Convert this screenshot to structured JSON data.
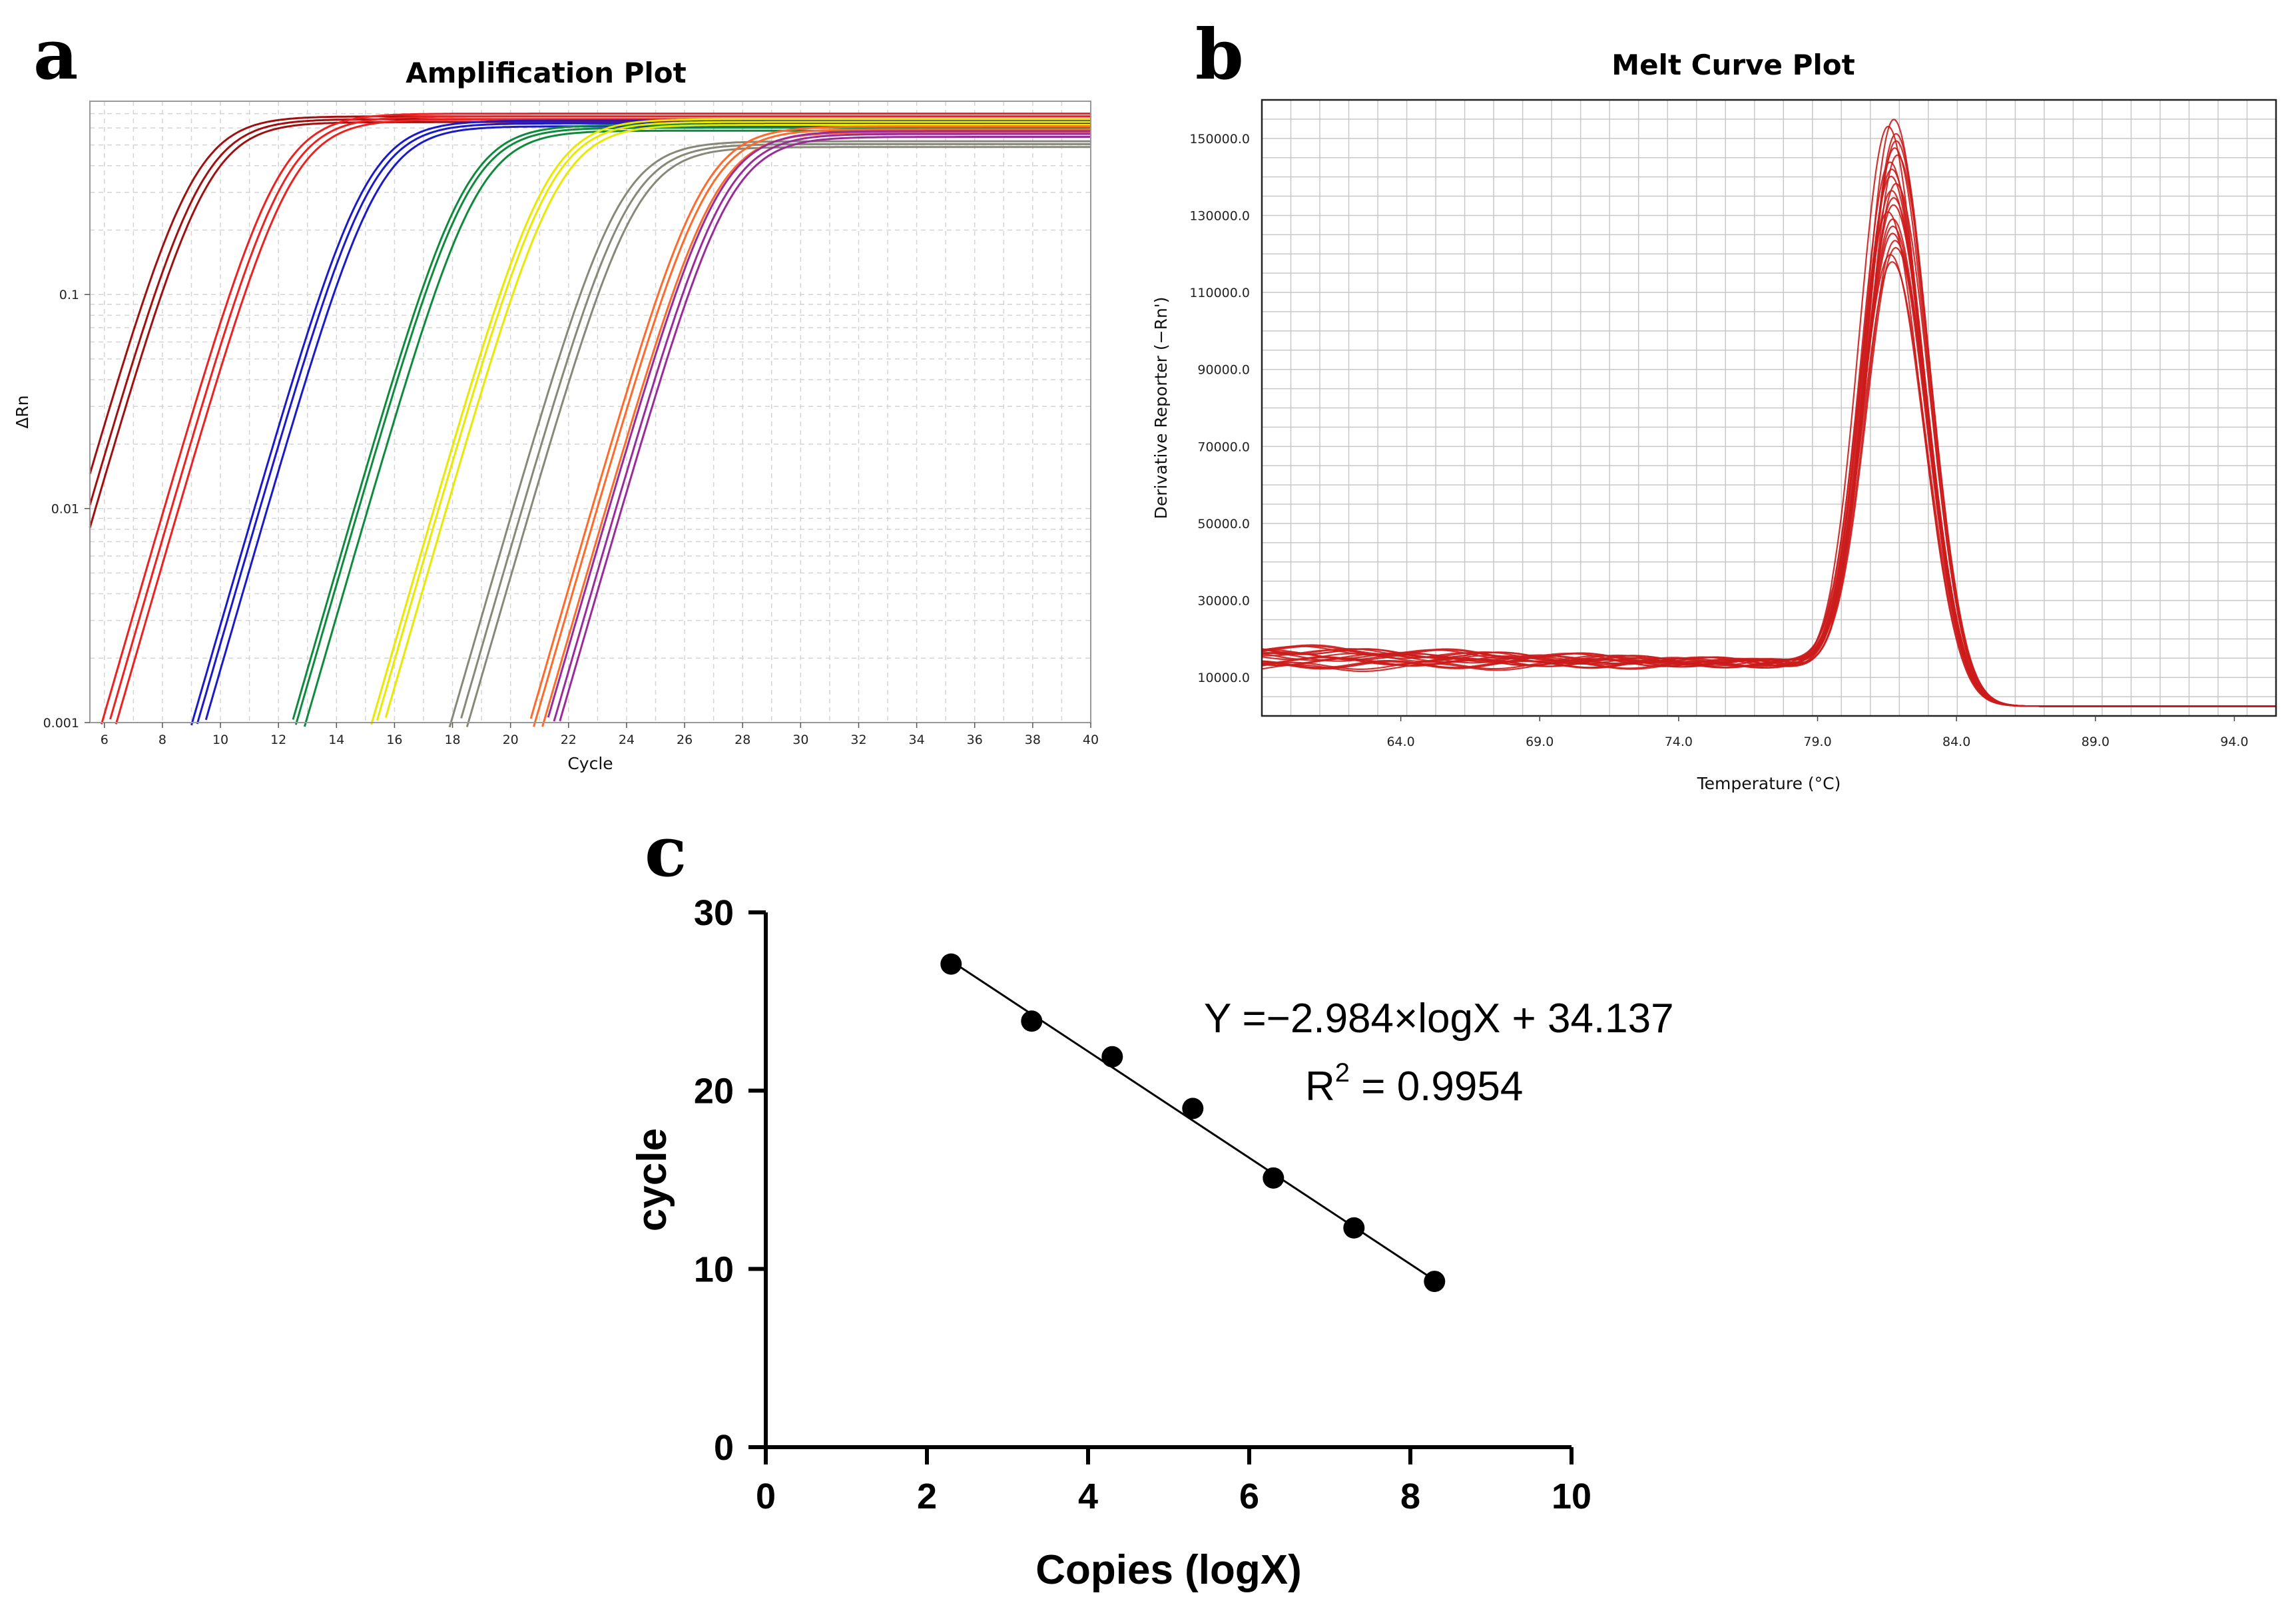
{
  "figure": {
    "panel_a_letter": "a",
    "panel_b_letter": "b",
    "panel_c_letter": "c"
  },
  "chart_data": [
    {
      "panel": "a",
      "type": "line",
      "title": "Amplification Plot",
      "xlabel": "Cycle",
      "ylabel": "ΔRn",
      "xlim": [
        5.5,
        40
      ],
      "ylim": [
        0.001,
        0.8
      ],
      "yscale": "log",
      "x_ticks": [
        "6",
        "8",
        "10",
        "12",
        "14",
        "16",
        "18",
        "20",
        "22",
        "24",
        "26",
        "28",
        "30",
        "32",
        "34",
        "36",
        "38",
        "40"
      ],
      "y_ticks": [
        "0.001",
        "0.01",
        "0.1"
      ],
      "grid": true,
      "series": [
        {
          "color": "#a01010",
          "ct": 9.3,
          "plateau": 0.68,
          "replicates": 3
        },
        {
          "color": "#ee2020",
          "ct": 12.2,
          "plateau": 0.7,
          "replicates": 3
        },
        {
          "color": "#1a1acc",
          "ct": 15.2,
          "plateau": 0.65,
          "replicates": 3
        },
        {
          "color": "#0d8a3c",
          "ct": 18.6,
          "plateau": 0.62,
          "replicates": 3
        },
        {
          "color": "#e8e800",
          "ct": 21.4,
          "plateau": 0.66,
          "replicates": 3
        },
        {
          "color": "#888878",
          "ct": 24.0,
          "plateau": 0.52,
          "replicates": 3
        },
        {
          "color": "#ff6a2a",
          "ct": 26.8,
          "plateau": 0.61,
          "replicates": 3
        },
        {
          "color": "#9a2b9a",
          "ct": 27.3,
          "plateau": 0.58,
          "replicates": 3
        }
      ]
    },
    {
      "panel": "b",
      "type": "line",
      "title": "Melt Curve Plot",
      "xlabel": "Temperature (°C)",
      "ylabel": "Derivative Reporter (−Rn')",
      "xlim": [
        59,
        95.5
      ],
      "ylim": [
        0,
        160000
      ],
      "x_ticks": [
        "64.0",
        "69.0",
        "74.0",
        "79.0",
        "84.0",
        "89.0",
        "94.0"
      ],
      "y_ticks": [
        "10000.0",
        "30000.0",
        "50000.0",
        "70000.0",
        "90000.0",
        "110000.0",
        "130000.0",
        "150000.0"
      ],
      "grid": true,
      "series_color": "#cc1c1c",
      "melt_peak_temperature": 81.7,
      "peak_height_range": [
        118000,
        155000
      ],
      "baseline_level": 15000,
      "curve_count": 21
    },
    {
      "panel": "c",
      "type": "scatter",
      "xlabel": "Copies (logX)",
      "ylabel": "cycle",
      "xlim": [
        0,
        10
      ],
      "ylim": [
        0,
        30
      ],
      "x_ticks": [
        "0",
        "2",
        "4",
        "6",
        "8",
        "10"
      ],
      "y_ticks": [
        "0",
        "10",
        "20",
        "30"
      ],
      "x": [
        2.3,
        3.3,
        4.3,
        5.3,
        6.3,
        7.3,
        8.3
      ],
      "y": [
        27.1,
        23.9,
        21.9,
        19.0,
        15.1,
        12.3,
        9.3
      ],
      "fit": {
        "slope": -2.984,
        "intercept": 34.137,
        "x_range": [
          2.3,
          8.3
        ]
      },
      "equation": "Y =−2.984×logX + 34.137",
      "r2_prefix": "R",
      "r2_sup": "2",
      "r2_value": " = 0.9954"
    }
  ]
}
